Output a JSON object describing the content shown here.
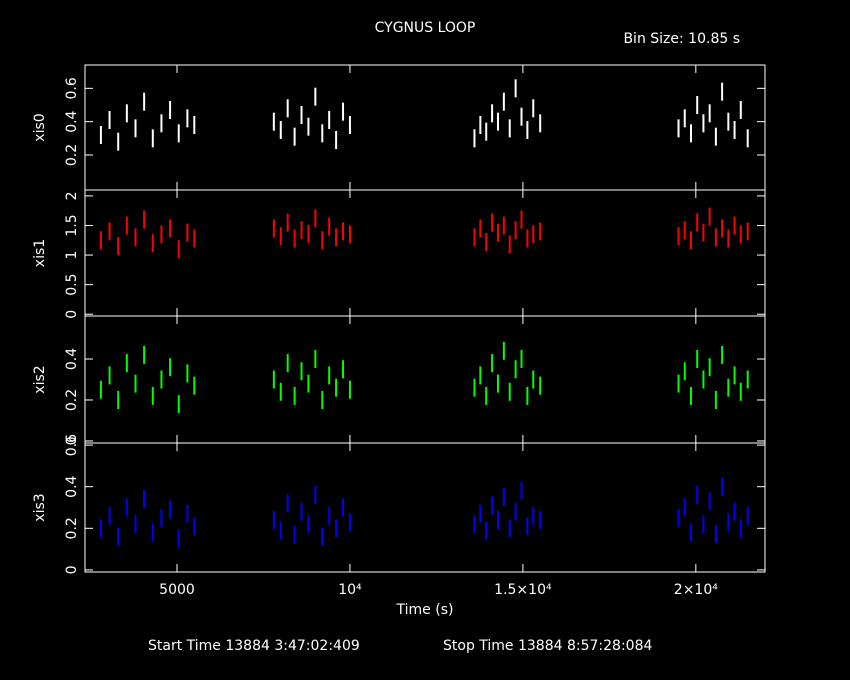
{
  "title": "CYGNUS LOOP",
  "bin_size": "Bin Size: 10.85 s",
  "x_label": "Time (s)",
  "start_time": "Start Time 13884  3:47:02:409",
  "stop_time": "Stop Time 13884  8:57:28:084",
  "chart_data": [
    {
      "type": "scatter",
      "y_label": "xis0",
      "color": "#ffffff",
      "x": [
        2800,
        3050,
        3300,
        3550,
        3800,
        4050,
        4300,
        4550,
        4800,
        5050,
        5300,
        5500,
        7800,
        8000,
        8200,
        8400,
        8600,
        8800,
        9000,
        9200,
        9400,
        9600,
        9800,
        10000,
        13600,
        13770,
        13940,
        14110,
        14280,
        14450,
        14620,
        14790,
        14960,
        15130,
        15300,
        15500,
        19500,
        19680,
        19860,
        20040,
        20220,
        20400,
        20580,
        20760,
        20940,
        21120,
        21300,
        21500
      ],
      "values": [
        0.32,
        0.41,
        0.28,
        0.45,
        0.36,
        0.52,
        0.3,
        0.39,
        0.47,
        0.33,
        0.42,
        0.38,
        0.4,
        0.35,
        0.48,
        0.31,
        0.44,
        0.37,
        0.55,
        0.33,
        0.41,
        0.29,
        0.46,
        0.38,
        0.3,
        0.38,
        0.34,
        0.45,
        0.4,
        0.52,
        0.36,
        0.6,
        0.43,
        0.35,
        0.48,
        0.39,
        0.36,
        0.42,
        0.33,
        0.5,
        0.39,
        0.45,
        0.31,
        0.58,
        0.4,
        0.35,
        0.47,
        0.3
      ],
      "xlim": [
        2340,
        22000
      ],
      "xticks": [
        5000,
        {
          "value": 10000,
          "label": "10⁴"
        },
        {
          "value": 15000,
          "label": "1.5×10⁴"
        },
        {
          "value": 20000,
          "label": "2×10⁴"
        }
      ],
      "ylim": [
        -0.01,
        0.74
      ],
      "yticks": [
        0.2,
        0.4,
        0.6
      ]
    },
    {
      "type": "scatter",
      "y_label": "xis1",
      "color": "#ff0000",
      "x": [
        2800,
        3050,
        3300,
        3550,
        3800,
        4050,
        4300,
        4550,
        4800,
        5050,
        5300,
        5500,
        7800,
        8000,
        8200,
        8400,
        8600,
        8800,
        9000,
        9200,
        9400,
        9600,
        9800,
        10000,
        13600,
        13770,
        13940,
        14110,
        14280,
        14450,
        14620,
        14790,
        14960,
        15130,
        15300,
        15500,
        19500,
        19680,
        19860,
        20040,
        20220,
        20400,
        20580,
        20760,
        20940,
        21120,
        21300,
        21500
      ],
      "values": [
        1.25,
        1.4,
        1.15,
        1.5,
        1.3,
        1.6,
        1.2,
        1.35,
        1.45,
        1.1,
        1.38,
        1.28,
        1.45,
        1.32,
        1.55,
        1.28,
        1.42,
        1.36,
        1.62,
        1.25,
        1.48,
        1.3,
        1.4,
        1.35,
        1.3,
        1.45,
        1.22,
        1.55,
        1.38,
        1.5,
        1.18,
        1.42,
        1.6,
        1.28,
        1.35,
        1.4,
        1.32,
        1.42,
        1.25,
        1.55,
        1.38,
        1.65,
        1.3,
        1.45,
        1.28,
        1.5,
        1.35,
        1.4
      ],
      "xlim": [
        2340,
        22000
      ],
      "xticks": [
        5000,
        {
          "value": 10000,
          "label": "10⁴"
        },
        {
          "value": 15000,
          "label": "1.5×10⁴"
        },
        {
          "value": 20000,
          "label": "2×10⁴"
        }
      ],
      "ylim": [
        -0.03,
        2.1
      ],
      "yticks": [
        0,
        0.5,
        1,
        1.5,
        2
      ]
    },
    {
      "type": "scatter",
      "y_label": "xis2",
      "color": "#00ff00",
      "x": [
        2800,
        3050,
        3300,
        3550,
        3800,
        4050,
        4300,
        4550,
        4800,
        5050,
        5300,
        5500,
        7800,
        8000,
        8200,
        8400,
        8600,
        8800,
        9000,
        9200,
        9400,
        9600,
        9800,
        10000,
        13600,
        13770,
        13940,
        14110,
        14280,
        14450,
        14620,
        14790,
        14960,
        15130,
        15300,
        15500,
        19500,
        19680,
        19860,
        20040,
        20220,
        20400,
        20580,
        20760,
        20940,
        21120,
        21300,
        21500
      ],
      "values": [
        0.25,
        0.32,
        0.2,
        0.38,
        0.28,
        0.42,
        0.22,
        0.3,
        0.36,
        0.18,
        0.33,
        0.27,
        0.3,
        0.24,
        0.38,
        0.22,
        0.34,
        0.28,
        0.4,
        0.2,
        0.32,
        0.26,
        0.35,
        0.25,
        0.26,
        0.32,
        0.22,
        0.38,
        0.28,
        0.44,
        0.24,
        0.35,
        0.4,
        0.22,
        0.3,
        0.27,
        0.28,
        0.34,
        0.22,
        0.4,
        0.3,
        0.36,
        0.2,
        0.42,
        0.26,
        0.32,
        0.24,
        0.3
      ],
      "xlim": [
        2340,
        22000
      ],
      "xticks": [
        5000,
        {
          "value": 10000,
          "label": "10⁴"
        },
        {
          "value": 15000,
          "label": "1.5×10⁴"
        },
        {
          "value": 20000,
          "label": "2×10⁴"
        }
      ],
      "ylim": [
        -0.01,
        0.61
      ],
      "yticks": [
        0,
        0.2,
        0.4
      ]
    },
    {
      "type": "scatter",
      "y_label": "xis3",
      "color": "#0000ff",
      "x": [
        2800,
        3050,
        3300,
        3550,
        3800,
        4050,
        4300,
        4550,
        4800,
        5050,
        5300,
        5500,
        7800,
        8000,
        8200,
        8400,
        8600,
        8800,
        9000,
        9200,
        9400,
        9600,
        9800,
        10000,
        13600,
        13770,
        13940,
        14110,
        14280,
        14450,
        14620,
        14790,
        14960,
        15130,
        15300,
        15500,
        19500,
        19680,
        19860,
        20040,
        20220,
        20400,
        20580,
        20760,
        20940,
        21120,
        21300,
        21500
      ],
      "values": [
        0.2,
        0.26,
        0.16,
        0.3,
        0.22,
        0.34,
        0.18,
        0.25,
        0.29,
        0.15,
        0.27,
        0.21,
        0.24,
        0.19,
        0.32,
        0.17,
        0.28,
        0.22,
        0.36,
        0.16,
        0.26,
        0.2,
        0.3,
        0.23,
        0.22,
        0.27,
        0.19,
        0.31,
        0.24,
        0.35,
        0.2,
        0.28,
        0.38,
        0.21,
        0.26,
        0.24,
        0.25,
        0.3,
        0.18,
        0.36,
        0.22,
        0.33,
        0.17,
        0.4,
        0.23,
        0.28,
        0.2,
        0.26
      ],
      "xlim": [
        2340,
        22000
      ],
      "xticks": [
        5000,
        {
          "value": 10000,
          "label": "10⁴"
        },
        {
          "value": 15000,
          "label": "1.5×10⁴"
        },
        {
          "value": 20000,
          "label": "2×10⁴"
        }
      ],
      "ylim": [
        -0.01,
        0.61
      ],
      "yticks": [
        0,
        0.2,
        0.4,
        0.6
      ]
    }
  ]
}
